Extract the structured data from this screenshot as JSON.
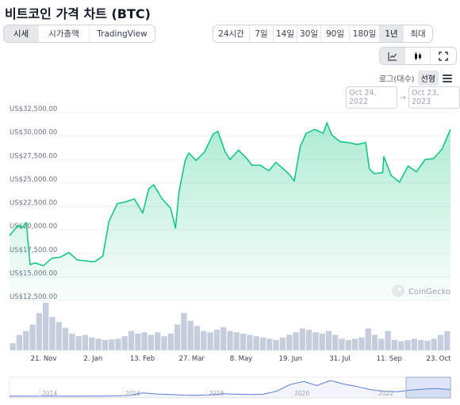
{
  "title": "비트코인 가격 차트 (BTC)",
  "view_tabs": [
    {
      "label": "시세",
      "active": true
    },
    {
      "label": "시가총액",
      "active": false
    },
    {
      "label": "TradingView",
      "active": false
    }
  ],
  "range_tabs": [
    {
      "label": "24시간",
      "active": false
    },
    {
      "label": "7일",
      "active": false
    },
    {
      "label": "14일",
      "active": false
    },
    {
      "label": "30일",
      "active": false
    },
    {
      "label": "90일",
      "active": false
    },
    {
      "label": "180일",
      "active": false
    },
    {
      "label": "1년",
      "active": true
    },
    {
      "label": "최대",
      "active": false
    }
  ],
  "chart_type_buttons": [
    {
      "icon": "line-chart-icon",
      "active": true
    },
    {
      "icon": "candlestick-icon",
      "active": false
    },
    {
      "icon": "fullscreen-icon",
      "active": false
    }
  ],
  "scale": {
    "log_label": "로그(대수)",
    "linear_label": "선형",
    "active": "linear"
  },
  "date_range": {
    "from": "Oct 24, 2022",
    "arrow": "→",
    "to": "Oct 23, 2023"
  },
  "watermark": "CoinGecko",
  "colors": {
    "line": "#16c784",
    "fill_top": "#16c784",
    "volume": "#c6cedd",
    "navigator": "#5b7bd5"
  },
  "chart_data": {
    "type": "area",
    "y_ticks": [
      "US$32,500.00",
      "US$30,000.00",
      "US$27,500.00",
      "US$25,000.00",
      "US$22,500.00",
      "US$20,000.00",
      "US$17,500.00",
      "US$15,000.00",
      "US$12,500.00"
    ],
    "ylim": [
      12500,
      32500
    ],
    "x_labels": [
      "21. Nov",
      "2. Jan",
      "13. Feb",
      "27. Mar",
      "8. May",
      "19. Jun",
      "31. Jul",
      "11. Sep",
      "23. Oct"
    ],
    "x": [
      "2022-10-24",
      "2022-10-31",
      "2022-11-03",
      "2022-11-07",
      "2022-11-08",
      "2022-11-09",
      "2022-11-10",
      "2022-11-14",
      "2022-11-21",
      "2022-11-28",
      "2022-12-05",
      "2022-12-12",
      "2022-12-19",
      "2022-12-26",
      "2023-01-02",
      "2023-01-09",
      "2023-01-14",
      "2023-01-21",
      "2023-01-28",
      "2023-02-04",
      "2023-02-11",
      "2023-02-16",
      "2023-02-20",
      "2023-02-27",
      "2023-03-06",
      "2023-03-10",
      "2023-03-13",
      "2023-03-18",
      "2023-03-21",
      "2023-03-27",
      "2023-04-03",
      "2023-04-10",
      "2023-04-14",
      "2023-04-20",
      "2023-04-24",
      "2023-05-01",
      "2023-05-08",
      "2023-05-12",
      "2023-05-19",
      "2023-05-26",
      "2023-06-01",
      "2023-06-08",
      "2023-06-12",
      "2023-06-16",
      "2023-06-21",
      "2023-06-26",
      "2023-07-03",
      "2023-07-10",
      "2023-07-13",
      "2023-07-17",
      "2023-07-24",
      "2023-07-31",
      "2023-08-07",
      "2023-08-14",
      "2023-08-17",
      "2023-08-21",
      "2023-08-28",
      "2023-08-29",
      "2023-09-04",
      "2023-09-11",
      "2023-09-18",
      "2023-09-25",
      "2023-10-02",
      "2023-10-09",
      "2023-10-16",
      "2023-10-20",
      "2023-10-23"
    ],
    "series": [
      {
        "values": [
          19400,
          20500,
          20200,
          20800,
          19100,
          17800,
          16300,
          16500,
          16200,
          17000,
          17100,
          17600,
          16800,
          16700,
          16600,
          17200,
          20900,
          22800,
          23000,
          23300,
          21800,
          24400,
          24800,
          23300,
          22300,
          20200,
          24100,
          27400,
          28200,
          27400,
          28300,
          30200,
          30500,
          28300,
          27500,
          28500,
          27600,
          26900,
          26900,
          26300,
          27200,
          26400,
          25900,
          25200,
          28900,
          30300,
          30700,
          30300,
          31400,
          30100,
          29400,
          29300,
          29100,
          29300,
          26500,
          26000,
          26100,
          27800,
          25800,
          25100,
          26800,
          26200,
          27500,
          27600,
          28600,
          29800,
          30700
        ]
      }
    ],
    "volume": [
      11,
      24,
      30,
      40,
      58,
      74,
      52,
      44,
      35,
      26,
      22,
      24,
      20,
      18,
      16,
      17,
      18,
      22,
      30,
      26,
      28,
      24,
      28,
      22,
      26,
      40,
      58,
      46,
      38,
      30,
      28,
      32,
      36,
      30,
      28,
      26,
      24,
      22,
      20,
      18,
      16,
      20,
      24,
      28,
      34,
      32,
      28,
      26,
      30,
      24,
      18,
      16,
      18,
      20,
      34,
      24,
      18,
      30,
      16,
      14,
      16,
      18,
      16,
      15,
      18,
      24,
      30
    ],
    "navigator": {
      "x_labels": [
        "2014",
        "2016",
        "2018",
        "2020",
        "2022"
      ],
      "values": [
        0.4,
        0.5,
        0.4,
        0.35,
        0.35,
        0.4,
        0.5,
        0.6,
        1.5,
        3.8,
        13,
        9,
        7,
        4.5,
        4,
        6,
        10,
        8,
        7,
        8,
        20,
        46,
        58,
        42,
        62,
        48,
        38,
        26,
        20,
        18,
        24,
        28,
        30,
        26
      ]
    }
  }
}
